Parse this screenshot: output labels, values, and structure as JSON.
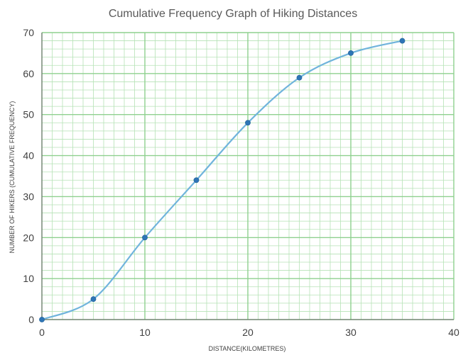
{
  "chart_data": {
    "type": "line",
    "title": "Cumulative Frequency Graph of Hiking Distances",
    "xlabel": "DISTANCE(KILOMETRES)",
    "ylabel": "NUMBER OF HIKERS (CUMULATIVE FREQUENCY)",
    "x": [
      0,
      5,
      10,
      15,
      20,
      25,
      30,
      35
    ],
    "series": [
      {
        "values": [
          0,
          5,
          20,
          34,
          48,
          59,
          65,
          68
        ]
      }
    ],
    "xlim": [
      0,
      40
    ],
    "ylim": [
      0,
      70
    ],
    "x_major_step": 10,
    "y_major_step": 10,
    "x_minor_step": 1,
    "y_minor_step": 2,
    "x_ticks": [
      "0",
      "10",
      "20",
      "30",
      "40"
    ],
    "y_ticks": [
      "0",
      "10",
      "20",
      "30",
      "40",
      "50",
      "60",
      "70"
    ],
    "grid": true,
    "line_style": "smooth",
    "colors": {
      "line": "#70b4dc",
      "marker": "#2e75b6",
      "grid": "#8fd08f",
      "grid_minor": "#b6e2b6",
      "axis": "#606060"
    }
  }
}
